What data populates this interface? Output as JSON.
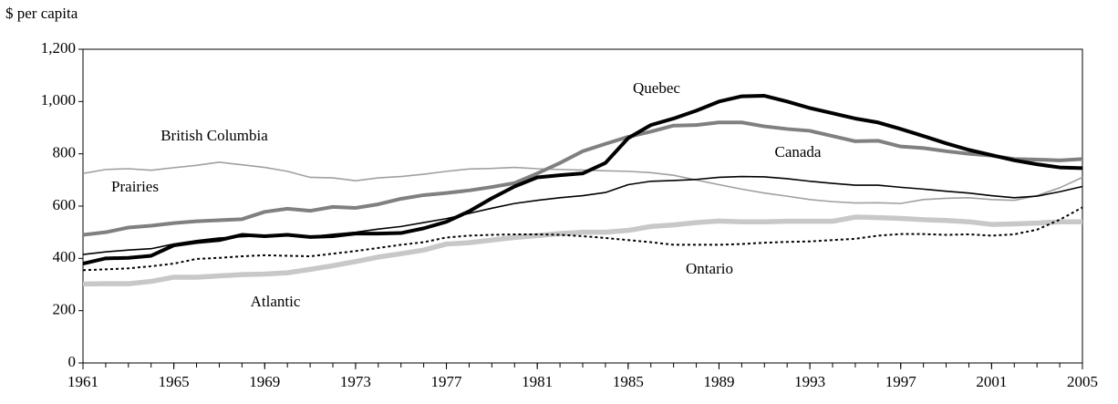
{
  "chart_data": {
    "type": "line",
    "ylabel": "$ per capita",
    "x": [
      1961,
      1962,
      1963,
      1964,
      1965,
      1966,
      1967,
      1968,
      1969,
      1970,
      1971,
      1972,
      1973,
      1974,
      1975,
      1976,
      1977,
      1978,
      1979,
      1980,
      1981,
      1982,
      1983,
      1984,
      1985,
      1986,
      1987,
      1988,
      1989,
      1990,
      1991,
      1992,
      1993,
      1994,
      1995,
      1996,
      1997,
      1998,
      1999,
      2000,
      2001,
      2002,
      2003,
      2004,
      2005
    ],
    "xlim": [
      1961,
      2005
    ],
    "xticks": [
      1961,
      1965,
      1969,
      1973,
      1977,
      1981,
      1985,
      1989,
      1993,
      1997,
      2001,
      2005
    ],
    "ylim": [
      0,
      1200
    ],
    "yticks": [
      0,
      200,
      400,
      600,
      800,
      {
        "value": 1000,
        "label": "1,000"
      },
      {
        "value": 1200,
        "label": "1,200"
      }
    ],
    "grid": false,
    "series": [
      {
        "name": "British Columbia",
        "color": "#a0a0a0",
        "style": "thin",
        "values": [
          725,
          740,
          743,
          737,
          747,
          756,
          768,
          758,
          748,
          733,
          710,
          708,
          697,
          708,
          713,
          722,
          733,
          742,
          744,
          748,
          743,
          740,
          738,
          735,
          733,
          728,
          718,
          700,
          682,
          665,
          650,
          638,
          625,
          617,
          612,
          613,
          610,
          625,
          630,
          632,
          625,
          622,
          640,
          670,
          710
        ]
      },
      {
        "name": "Atlantic",
        "color": "#c8c8c8",
        "style": "heavy",
        "values": [
          302,
          303,
          303,
          312,
          328,
          328,
          333,
          338,
          340,
          345,
          358,
          372,
          388,
          405,
          418,
          432,
          455,
          460,
          470,
          480,
          487,
          495,
          500,
          500,
          507,
          522,
          528,
          537,
          543,
          540,
          540,
          542,
          542,
          542,
          558,
          556,
          553,
          548,
          545,
          540,
          530,
          532,
          535,
          540,
          540
        ]
      },
      {
        "name": "Prairies",
        "color": "#000000",
        "style": "thin",
        "values": [
          415,
          425,
          432,
          437,
          455,
          468,
          478,
          483,
          487,
          487,
          483,
          492,
          500,
          512,
          522,
          537,
          552,
          572,
          592,
          610,
          622,
          632,
          640,
          652,
          682,
          695,
          698,
          702,
          710,
          713,
          712,
          705,
          695,
          687,
          680,
          680,
          672,
          665,
          657,
          650,
          640,
          632,
          638,
          655,
          675
        ]
      },
      {
        "name": "Ontario",
        "color": "#000000",
        "style": "dotted",
        "values": [
          355,
          358,
          362,
          370,
          380,
          398,
          402,
          408,
          412,
          410,
          408,
          418,
          428,
          440,
          452,
          462,
          480,
          487,
          490,
          492,
          492,
          490,
          485,
          478,
          470,
          462,
          452,
          452,
          452,
          455,
          460,
          463,
          465,
          470,
          475,
          487,
          493,
          493,
          490,
          492,
          487,
          492,
          510,
          548,
          595
        ]
      },
      {
        "name": "Canada",
        "color": "#808080",
        "style": "thick",
        "values": [
          490,
          500,
          518,
          525,
          535,
          542,
          546,
          550,
          578,
          590,
          582,
          597,
          593,
          607,
          628,
          642,
          650,
          660,
          673,
          688,
          725,
          765,
          810,
          838,
          865,
          885,
          908,
          910,
          920,
          920,
          905,
          895,
          888,
          868,
          848,
          850,
          828,
          822,
          810,
          800,
          793,
          780,
          778,
          775,
          780
        ]
      },
      {
        "name": "Quebec",
        "color": "#000000",
        "style": "thick",
        "values": [
          380,
          400,
          402,
          410,
          450,
          462,
          470,
          490,
          485,
          490,
          482,
          485,
          495,
          495,
          497,
          515,
          540,
          580,
          630,
          675,
          710,
          718,
          725,
          765,
          860,
          910,
          935,
          965,
          1000,
          1020,
          1022,
          1000,
          975,
          955,
          935,
          920,
          895,
          868,
          840,
          815,
          795,
          775,
          760,
          748,
          745
        ]
      }
    ]
  }
}
